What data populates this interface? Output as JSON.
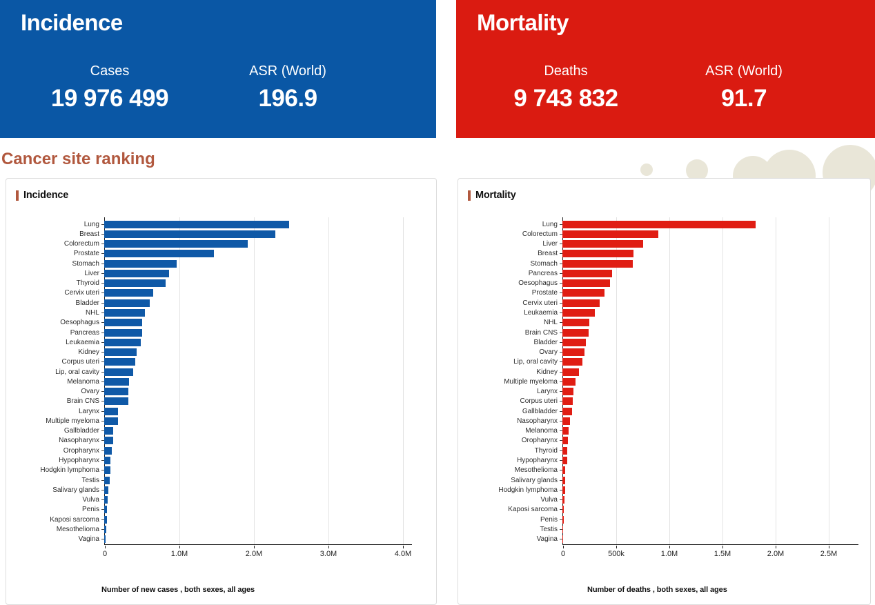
{
  "section_title": "Cancer site ranking",
  "summary_cards": [
    {
      "title": "Incidence",
      "stat1_label": "Cases",
      "stat1_value": "19 976 499",
      "stat2_label": "ASR (World)",
      "stat2_value": "196.9"
    },
    {
      "title": "Mortality",
      "stat1_label": "Deaths",
      "stat1_value": "9 743 832",
      "stat2_label": "ASR (World)",
      "stat2_value": "91.7"
    }
  ],
  "colors": {
    "incidence_blue": "#0a57a5",
    "mortality_red": "#da1b11",
    "bar_blue": "#0f59a7",
    "bar_red": "#e01d13",
    "accent_terracotta": "#b1583e",
    "blob_beige": "#e9e6d8"
  },
  "chart_data": [
    {
      "type": "bar",
      "orientation": "horizontal",
      "title": "Incidence",
      "xlabel": "Number of new cases , both sexes, all ages",
      "bar_color": "#0f59a7",
      "grid": "vertical",
      "axis_range": [
        0,
        4000000
      ],
      "ticks": [
        {
          "label": "0",
          "value": 0
        },
        {
          "label": "1.0M",
          "value": 1000000
        },
        {
          "label": "2.0M",
          "value": 2000000
        },
        {
          "label": "3.0M",
          "value": 3000000
        },
        {
          "label": "4.0M",
          "value": 4000000
        }
      ],
      "categories": [
        "Lung",
        "Breast",
        "Colorectum",
        "Prostate",
        "Stomach",
        "Liver",
        "Thyroid",
        "Cervix uteri",
        "Bladder",
        "NHL",
        "Oesophagus",
        "Pancreas",
        "Leukaemia",
        "Kidney",
        "Corpus uteri",
        "Lip, oral cavity",
        "Melanoma",
        "Ovary",
        "Brain CNS",
        "Larynx",
        "Multiple myeloma",
        "Gallbladder",
        "Nasopharynx",
        "Oropharynx",
        "Hypopharynx",
        "Hodgkin lymphoma",
        "Testis",
        "Salivary glands",
        "Vulva",
        "Penis",
        "Kaposi sarcoma",
        "Mesothelioma",
        "Vagina"
      ],
      "values": [
        2480000,
        2300000,
        1930000,
        1470000,
        970000,
        870000,
        820000,
        660000,
        610000,
        550000,
        510000,
        510000,
        490000,
        435000,
        420000,
        390000,
        332000,
        325000,
        321000,
        189000,
        188000,
        122000,
        120000,
        106000,
        86000,
        82000,
        74000,
        54000,
        47000,
        38000,
        35000,
        31000,
        19000
      ]
    },
    {
      "type": "bar",
      "orientation": "horizontal",
      "title": "Mortality",
      "xlabel": "Number of deaths , both sexes, all ages",
      "bar_color": "#e01d13",
      "grid": "vertical",
      "axis_range": [
        0,
        2500000
      ],
      "ticks": [
        {
          "label": "0",
          "value": 0
        },
        {
          "label": "500k",
          "value": 500000
        },
        {
          "label": "1.0M",
          "value": 1000000
        },
        {
          "label": "1.5M",
          "value": 1500000
        },
        {
          "label": "2.0M",
          "value": 2000000
        },
        {
          "label": "2.5M",
          "value": 2500000
        }
      ],
      "categories": [
        "Lung",
        "Colorectum",
        "Liver",
        "Breast",
        "Stomach",
        "Pancreas",
        "Oesophagus",
        "Prostate",
        "Cervix uteri",
        "Leukaemia",
        "NHL",
        "Brain CNS",
        "Bladder",
        "Ovary",
        "Lip, oral cavity",
        "Kidney",
        "Multiple myeloma",
        "Larynx",
        "Corpus uteri",
        "Gallbladder",
        "Nasopharynx",
        "Melanoma",
        "Oropharynx",
        "Thyroid",
        "Hypopharynx",
        "Mesothelioma",
        "Salivary glands",
        "Hodgkin lymphoma",
        "Vulva",
        "Kaposi sarcoma",
        "Penis",
        "Testis",
        "Vagina"
      ],
      "values": [
        1820000,
        904000,
        759000,
        666000,
        660000,
        467000,
        445000,
        397000,
        349000,
        305000,
        250000,
        248000,
        220000,
        207000,
        188000,
        156000,
        121000,
        103000,
        98000,
        89000,
        73000,
        59000,
        52000,
        48000,
        46000,
        27000,
        24000,
        23000,
        19000,
        15000,
        13000,
        9000,
        8000
      ]
    }
  ]
}
